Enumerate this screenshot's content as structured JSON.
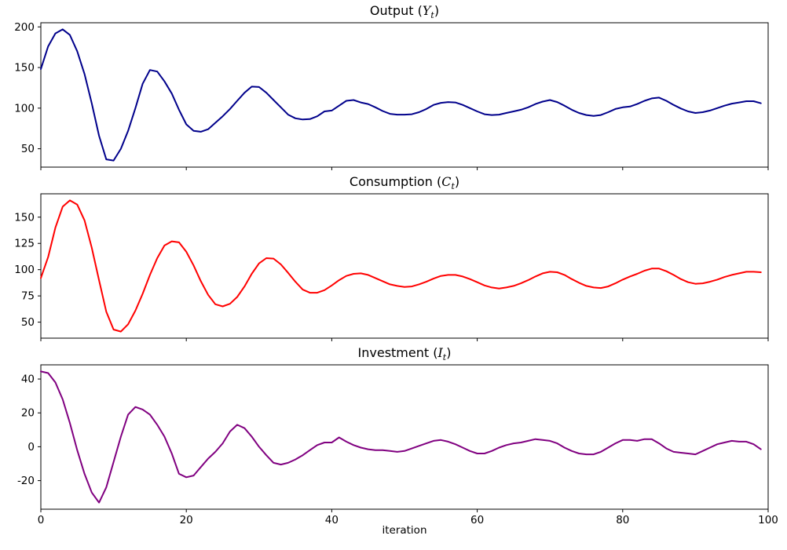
{
  "figure": {
    "background": "#ffffff",
    "xlabel": "iteration"
  },
  "chart_data": [
    {
      "id": "output",
      "type": "line",
      "title_prefix": "Output (",
      "title_var": "Y",
      "title_sub": "t",
      "title_suffix": ")",
      "color": "#00008B",
      "line_width": 2,
      "xlim": [
        0,
        100
      ],
      "xticks": [
        0,
        20,
        40,
        60,
        80,
        100
      ],
      "x_tick_labels_visible": false,
      "ylim": [
        27.4,
        205.1
      ],
      "yticks": [
        50,
        100,
        150,
        200
      ],
      "x_start": 0,
      "x_step": 1,
      "values": [
        148,
        176,
        192,
        197,
        190,
        170,
        142,
        106,
        66,
        37,
        35.5,
        50,
        72,
        100,
        130,
        147,
        145,
        133,
        118,
        98,
        80,
        72,
        71,
        74,
        82,
        90,
        99,
        109,
        119,
        126.5,
        126,
        119,
        110,
        101,
        92,
        87.5,
        86,
        86.5,
        90,
        96,
        97,
        103,
        109,
        110,
        107,
        105,
        101,
        96.5,
        93,
        92,
        92,
        92.5,
        95,
        99,
        104,
        106.5,
        107.5,
        107,
        104,
        100,
        96,
        92.5,
        91.5,
        92,
        94,
        96,
        98,
        101,
        105,
        108,
        110,
        107.5,
        103,
        98,
        94,
        91.5,
        90.5,
        91.5,
        95,
        99,
        101,
        102,
        105,
        109,
        112,
        113,
        109,
        104,
        99.5,
        96,
        94,
        95,
        97,
        100,
        103,
        105.5,
        107,
        108.5,
        108.5,
        106
      ]
    },
    {
      "id": "consumption",
      "type": "line",
      "title_prefix": "Consumption (",
      "title_var": "C",
      "title_sub": "t",
      "title_suffix": ")",
      "color": "#FF0000",
      "line_width": 2,
      "xlim": [
        0,
        100
      ],
      "xticks": [
        0,
        20,
        40,
        60,
        80,
        100
      ],
      "x_tick_labels_visible": false,
      "ylim": [
        34.75,
        172.25
      ],
      "yticks": [
        50,
        75,
        100,
        125,
        150
      ],
      "x_start": 0,
      "x_step": 1,
      "values": [
        92,
        112,
        140,
        160,
        166,
        162,
        147,
        121,
        90,
        60,
        43,
        41,
        48,
        61,
        77,
        95,
        111,
        123,
        127,
        126,
        117,
        104,
        89,
        76,
        67,
        65,
        67.5,
        74,
        84,
        96,
        106,
        111,
        110.5,
        105,
        97,
        88.5,
        81,
        78,
        78,
        80.5,
        85,
        90,
        94,
        96,
        96.5,
        95,
        92,
        89,
        86,
        84.5,
        83.5,
        84,
        86,
        88.5,
        91.5,
        94,
        95,
        95,
        93.5,
        91,
        88,
        85,
        83,
        82,
        83,
        84.5,
        87,
        90,
        93.5,
        96.5,
        98,
        97.5,
        95,
        91,
        87.5,
        84.5,
        83,
        82.5,
        84,
        87,
        90.5,
        93.5,
        96,
        99,
        101,
        101,
        98.5,
        95,
        91,
        88,
        86.5,
        87,
        88.5,
        90.5,
        93,
        95,
        96.5,
        98,
        98,
        97.5
      ]
    },
    {
      "id": "investment",
      "type": "line",
      "title_prefix": "Investment (",
      "title_var": "I",
      "title_sub": "t",
      "title_suffix": ")",
      "color": "#800080",
      "line_width": 2,
      "xlim": [
        0,
        100
      ],
      "xticks": [
        0,
        20,
        40,
        60,
        80,
        100
      ],
      "x_tick_labels_visible": true,
      "ylim": [
        -36.875,
        48.375
      ],
      "yticks": [
        -20,
        0,
        20,
        40
      ],
      "x_start": 0,
      "x_step": 1,
      "values": [
        44.5,
        43.5,
        38,
        28,
        14,
        -2,
        -16,
        -27,
        -33,
        -24,
        -9,
        6,
        19,
        23.5,
        22,
        19,
        13,
        6,
        -4,
        -16,
        -18,
        -17,
        -12,
        -7,
        -3,
        2,
        9,
        13,
        11,
        6,
        0,
        -5,
        -9.5,
        -10.5,
        -9.5,
        -7.5,
        -5,
        -2,
        1,
        2.5,
        2.5,
        5.5,
        3,
        1,
        -0.5,
        -1.5,
        -2,
        -2,
        -2.5,
        -3,
        -2.5,
        -1,
        0.5,
        2,
        3.5,
        4,
        3,
        1.5,
        -0.5,
        -2.5,
        -4,
        -4,
        -2.5,
        -0.5,
        1,
        2,
        2.5,
        3.5,
        4.5,
        4,
        3.5,
        2,
        -0.5,
        -2.5,
        -4,
        -4.5,
        -4.5,
        -3,
        -0.5,
        2,
        4,
        4,
        3.5,
        4.5,
        4.5,
        2,
        -1,
        -3,
        -3.5,
        -4,
        -4.5,
        -2.5,
        -0.5,
        1.5,
        2.5,
        3.5,
        3,
        3,
        1.5,
        -1.5
      ]
    }
  ]
}
